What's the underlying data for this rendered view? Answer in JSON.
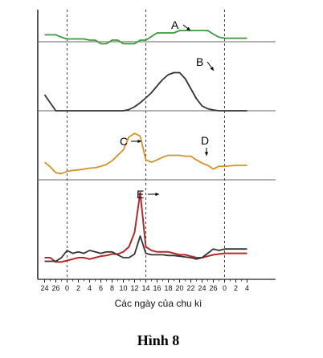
{
  "chart_data": {
    "type": "line",
    "caption": "Hình 8",
    "xlabel": "Các ngày của chu kì",
    "x_ticks": [
      "24",
      "26",
      "0",
      "2",
      "4",
      "6",
      "8",
      "10",
      "12",
      "14",
      "16",
      "18",
      "20",
      "22",
      "24",
      "26",
      "0",
      "2",
      "4"
    ],
    "x": [
      -4,
      -3,
      -2,
      -1,
      0,
      1,
      2,
      3,
      4,
      5,
      6,
      7,
      8,
      9,
      10,
      11,
      12,
      13,
      14,
      15,
      16,
      17,
      18,
      19,
      20,
      21,
      22,
      23,
      24,
      25,
      26,
      27,
      28,
      29,
      30,
      31,
      32
    ],
    "dashed_verticals_at": [
      0,
      14,
      28
    ],
    "panels": [
      {
        "id": "panel-1",
        "color": "#3a9a3a",
        "reference_line": true,
        "series": [
          {
            "label": "A",
            "values": [
              0.82,
              0.82,
              0.82,
              0.72,
              0.65,
              0.65,
              0.65,
              0.65,
              0.6,
              0.6,
              0.45,
              0.45,
              0.6,
              0.6,
              0.45,
              0.45,
              0.45,
              0.6,
              0.6,
              0.75,
              0.9,
              0.9,
              0.9,
              0.9,
              1.0,
              1.0,
              1.0,
              1.0,
              1.0,
              1.0,
              0.85,
              0.72,
              0.68,
              0.68,
              0.68,
              0.68,
              0.68
            ]
          }
        ]
      },
      {
        "id": "panel-2",
        "color": "#333333",
        "reference_line": true,
        "series": [
          {
            "label": "B",
            "values": [
              0.4,
              0.2,
              0.0,
              0.0,
              0.0,
              0.0,
              0.0,
              0.0,
              0.0,
              0.0,
              0.0,
              0.0,
              0.0,
              0.0,
              0.0,
              0.03,
              0.1,
              0.2,
              0.32,
              0.45,
              0.62,
              0.78,
              0.9,
              0.95,
              0.95,
              0.8,
              0.55,
              0.3,
              0.12,
              0.05,
              0.02,
              0.0,
              0.0,
              0.0,
              0.0,
              0.0,
              0.0
            ]
          }
        ]
      },
      {
        "id": "panel-3",
        "color": "#d4922a",
        "reference_line": true,
        "series": [
          {
            "label": "C",
            "label2": "D",
            "values": [
              0.35,
              0.25,
              0.12,
              0.1,
              0.15,
              0.17,
              0.18,
              0.2,
              0.22,
              0.23,
              0.26,
              0.3,
              0.38,
              0.5,
              0.62,
              0.9,
              0.98,
              0.92,
              0.4,
              0.35,
              0.4,
              0.46,
              0.5,
              0.5,
              0.5,
              0.48,
              0.48,
              0.4,
              0.33,
              0.28,
              0.2,
              0.26,
              0.26,
              0.27,
              0.28,
              0.28,
              0.28
            ]
          }
        ]
      },
      {
        "id": "panel-4",
        "reference_line": false,
        "series": [
          {
            "label": "E",
            "color": "#b52a2a",
            "values": [
              0.1,
              0.1,
              0.04,
              0.04,
              0.06,
              0.08,
              0.1,
              0.1,
              0.08,
              0.1,
              0.12,
              0.13,
              0.15,
              0.15,
              0.18,
              0.25,
              0.45,
              1.0,
              0.25,
              0.2,
              0.18,
              0.18,
              0.18,
              0.16,
              0.14,
              0.14,
              0.12,
              0.1,
              0.1,
              0.12,
              0.14,
              0.15,
              0.16,
              0.16,
              0.16,
              0.16,
              0.16
            ]
          },
          {
            "label": "",
            "color": "#333333",
            "values": [
              0.05,
              0.05,
              0.05,
              0.1,
              0.2,
              0.16,
              0.18,
              0.16,
              0.2,
              0.18,
              0.16,
              0.18,
              0.18,
              0.14,
              0.1,
              0.1,
              0.15,
              0.4,
              0.16,
              0.14,
              0.14,
              0.14,
              0.13,
              0.13,
              0.12,
              0.11,
              0.1,
              0.08,
              0.1,
              0.16,
              0.22,
              0.2,
              0.22,
              0.22,
              0.22,
              0.22,
              0.22
            ]
          }
        ]
      }
    ]
  }
}
